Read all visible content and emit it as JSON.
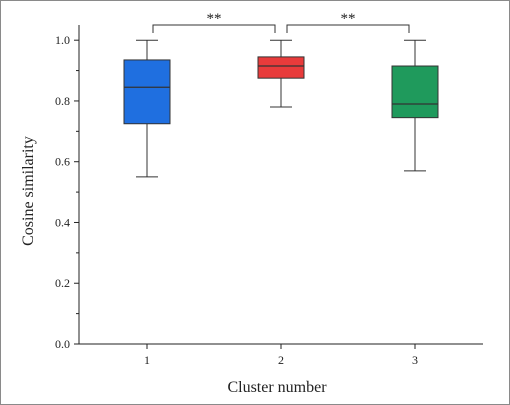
{
  "chart_data": {
    "type": "box",
    "title": "",
    "xlabel": "Cluster number",
    "ylabel": "Cosine similarity",
    "ylim": [
      0.0,
      1.05
    ],
    "yticks": [
      "0.0",
      "0.2",
      "0.4",
      "0.6",
      "0.8",
      "1.0"
    ],
    "categories": [
      "1",
      "2",
      "3"
    ],
    "boxes": [
      {
        "category": "1",
        "min": 0.55,
        "q1": 0.725,
        "median": 0.845,
        "q3": 0.935,
        "max": 1.0,
        "color": "#1f6fe0"
      },
      {
        "category": "2",
        "min": 0.78,
        "q1": 0.875,
        "median": 0.915,
        "q3": 0.945,
        "max": 1.0,
        "color": "#e83b3b"
      },
      {
        "category": "3",
        "min": 0.57,
        "q1": 0.745,
        "median": 0.79,
        "q3": 0.915,
        "max": 1.0,
        "color": "#1f9a5c"
      }
    ],
    "significance": [
      {
        "from": "1",
        "to": "2",
        "label": "**"
      },
      {
        "from": "2",
        "to": "3",
        "label": "**"
      }
    ],
    "grid": false,
    "legend": "none"
  }
}
